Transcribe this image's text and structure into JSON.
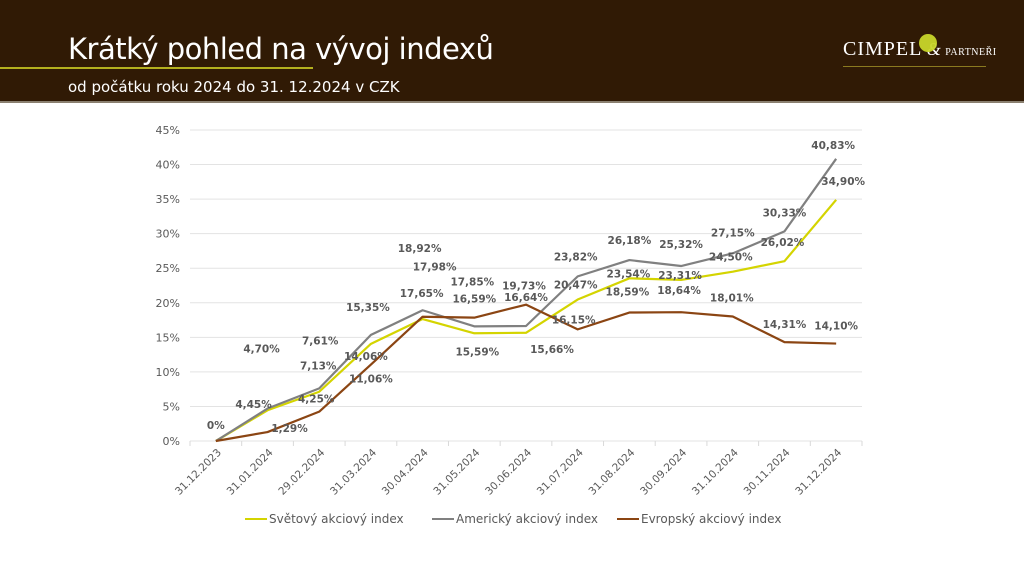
{
  "header": {
    "title": "Krátký pohled na vývoj indexů",
    "subtitle": "od počátku roku 2024 do 31. 12.2024 v CZK",
    "logo": {
      "main": "CIMPEL",
      "amp": "&",
      "sub": "PARTNEŘI"
    },
    "colors": {
      "background": "#301a05",
      "accent": "#b4b01e"
    }
  },
  "chart_data": {
    "type": "line",
    "title": "",
    "xlabel": "",
    "ylabel": "",
    "ylim": [
      0,
      45
    ],
    "yticks": [
      0,
      5,
      10,
      15,
      20,
      25,
      30,
      35,
      40,
      45
    ],
    "ytick_labels": [
      "0%",
      "5%",
      "10%",
      "15%",
      "20%",
      "25%",
      "30%",
      "35%",
      "40%",
      "45%"
    ],
    "grid": true,
    "legend_position": "bottom",
    "categories": [
      "31.12.2023",
      "31.01.2024",
      "29.02.2024",
      "31.03.2024",
      "30.04.2024",
      "31.05.2024",
      "30.06.2024",
      "31.07.2024",
      "31.08.2024",
      "30.09.2024",
      "31.10.2024",
      "30.11.2024",
      "31.12.2024"
    ],
    "series": [
      {
        "name": "Světový akciový index",
        "color": "#d4d400",
        "values": [
          0,
          4.45,
          7.13,
          14.06,
          17.65,
          15.59,
          15.66,
          20.47,
          23.54,
          23.31,
          24.5,
          26.02,
          34.9
        ],
        "labels": [
          "0%",
          "4,45%",
          "7,13%",
          "14,06%",
          "17,65%",
          "15,59%",
          "15,66%",
          "20,47%",
          "23,54%",
          "23,31%",
          "24,50%",
          "26,02%",
          "34,90%"
        ]
      },
      {
        "name": "Americký akciový index",
        "color": "#808080",
        "values": [
          0,
          4.7,
          7.61,
          15.35,
          18.92,
          16.59,
          16.64,
          23.82,
          26.18,
          25.32,
          27.15,
          30.33,
          40.83
        ],
        "labels": [
          "",
          "4,70%",
          "7,61%",
          "15,35%",
          "18,92%",
          "16,59%",
          "16,64%",
          "23,82%",
          "26,18%",
          "25,32%",
          "27,15%",
          "30,33%",
          "40,83%"
        ]
      },
      {
        "name": "Evropský akciový index",
        "color": "#8b4513",
        "values": [
          0,
          1.29,
          4.25,
          11.06,
          17.98,
          17.85,
          19.73,
          16.15,
          18.59,
          18.64,
          18.01,
          14.31,
          14.1
        ],
        "labels": [
          "",
          "1,29%",
          "4,25%",
          "11,06%",
          "17,98%",
          "17,85%",
          "19,73%",
          "16,15%",
          "18,59%",
          "18,64%",
          "18,01%",
          "14,31%",
          "14,10%"
        ]
      }
    ]
  }
}
